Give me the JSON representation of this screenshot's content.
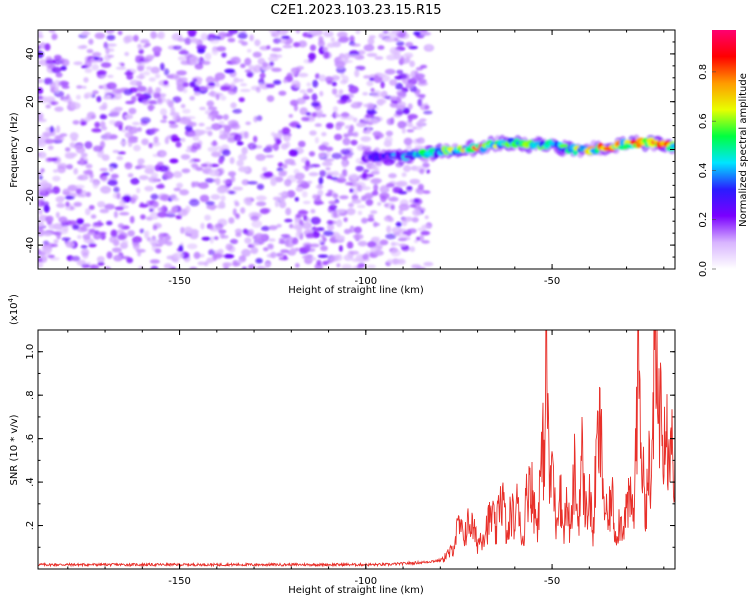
{
  "title": "C2E1.2023.103.23.15.R15",
  "chart_data": [
    {
      "type": "heatmap",
      "xlabel": "Height of straight line (km)",
      "ylabel": "Frequency (Hz)",
      "xlim": [
        -188,
        -17
      ],
      "ylim": [
        -50,
        50
      ],
      "xticks": [
        -150,
        -100,
        -50
      ],
      "yticks": [
        -40,
        -20,
        0,
        20,
        40
      ],
      "colorbar": {
        "label": "Normalized spectral amplitude",
        "range": [
          0,
          0.97
        ],
        "ticks": [
          0.0,
          0.2,
          0.4,
          0.6,
          0.8
        ],
        "colormap": [
          "#ffffff",
          "#d8b4ff",
          "#7a00ff",
          "#2a1cff",
          "#00e5ff",
          "#00ff40",
          "#e8ff00",
          "#ff9a00",
          "#ff0000",
          "#ff0070"
        ]
      },
      "noise_region": {
        "x": [
          -188,
          -83
        ],
        "freq": [
          -50,
          50
        ],
        "amplitude": [
          0.0,
          0.15
        ]
      },
      "signal_track": {
        "x": [
          -100,
          -90,
          -85,
          -80,
          -75,
          -70,
          -65,
          -60,
          -55,
          -50,
          -45,
          -40,
          -35,
          -30,
          -25,
          -20,
          -17
        ],
        "freq": [
          -3,
          -3,
          -2,
          -1,
          0,
          1,
          2,
          3,
          2,
          2,
          0,
          0,
          1,
          2,
          3,
          2,
          1
        ],
        "peak_amplitude": [
          0.3,
          0.45,
          0.55,
          0.6,
          0.7,
          0.85,
          0.7,
          0.6,
          0.65,
          0.55,
          0.6,
          0.85,
          0.9,
          0.85,
          0.95,
          0.9,
          0.8
        ]
      }
    },
    {
      "type": "line",
      "xlabel": "Height of straight line (km)",
      "ylabel": "SNR (10 * v/v)",
      "yscale_label": "(x10",
      "yscale_exp": "4",
      "xlim": [
        -188,
        -17
      ],
      "ylim": [
        0,
        1.1
      ],
      "xticks": [
        -150,
        -100,
        -50
      ],
      "yticks": [
        0.2,
        0.4,
        0.6,
        0.8,
        1.0
      ],
      "ytick_labels": [
        ".2",
        ".4",
        ".6",
        ".8",
        "1.0"
      ],
      "color": "#e8302a",
      "series": [
        {
          "x": [
            -188,
            -170,
            -150,
            -130,
            -110,
            -95,
            -85,
            -80,
            -77,
            -75,
            -74,
            -72,
            -70,
            -68,
            -66,
            -65,
            -64,
            -63,
            -62,
            -61,
            -60,
            -59,
            -58,
            -57,
            -56,
            -55,
            -54,
            -53,
            -52,
            -51.5,
            -51,
            -50.5,
            -50,
            -49,
            -48,
            -47,
            -46,
            -45,
            -44,
            -43,
            -42,
            -41,
            -40,
            -39,
            -38,
            -37,
            -36,
            -35,
            -34,
            -33,
            -32,
            -31,
            -30,
            -29,
            -28,
            -27,
            -26.5,
            -26,
            -25.5,
            -25,
            -24.5,
            -24,
            -23.5,
            -23,
            -22.5,
            -22,
            -21,
            -20.5,
            -20,
            -19.5,
            -19,
            -18.5,
            -18,
            -17.5,
            -17
          ],
          "y": [
            0.02,
            0.02,
            0.02,
            0.02,
            0.02,
            0.02,
            0.03,
            0.04,
            0.08,
            0.2,
            0.15,
            0.22,
            0.12,
            0.18,
            0.25,
            0.15,
            0.35,
            0.3,
            0.12,
            0.28,
            0.2,
            0.35,
            0.1,
            0.3,
            0.45,
            0.3,
            0.2,
            0.45,
            0.6,
            1.08,
            0.6,
            0.3,
            0.55,
            0.2,
            0.4,
            0.18,
            0.3,
            0.15,
            0.45,
            0.2,
            0.52,
            0.25,
            0.35,
            0.15,
            0.55,
            0.62,
            0.3,
            0.2,
            0.35,
            0.15,
            0.22,
            0.2,
            0.28,
            0.3,
            0.25,
            0.9,
            1.0,
            0.55,
            0.4,
            0.3,
            0.35,
            0.5,
            0.25,
            0.7,
            1.0,
            0.82,
            0.75,
            0.88,
            0.65,
            0.85,
            0.55,
            0.7,
            0.6,
            0.5,
            0.45
          ]
        }
      ]
    }
  ]
}
